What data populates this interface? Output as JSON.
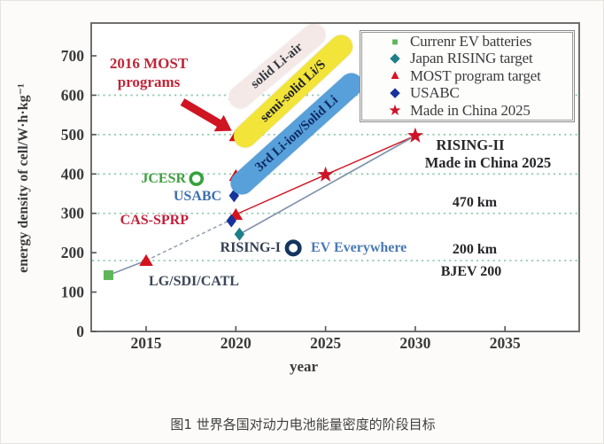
{
  "figure": {
    "caption": "图1 世界各国对动力电池能量密度的阶段目标"
  },
  "colors": {
    "accent_red": "#cf1422",
    "grid_green": "#93cbb0",
    "axis_gray": "#6f6f6f",
    "text_dark": "#3a3a3a"
  },
  "legend": {
    "items": [
      {
        "label": "Currenr EV batteries",
        "marker": "square",
        "color": "#5db75a"
      },
      {
        "label": "Japan RISING target",
        "marker": "diamond",
        "color": "#1d7f87"
      },
      {
        "label": "MOST program target",
        "marker": "triangle",
        "color": "#dd1020"
      },
      {
        "label": "USABC",
        "marker": "diamond",
        "color": "#16339b"
      },
      {
        "label": "Made in China 2025",
        "marker": "star",
        "color": "#cc1327"
      }
    ]
  },
  "chart_data": {
    "type": "scatter",
    "title": "",
    "xlabel": "year",
    "ylabel": "energy density of cell/W·h·kg⁻¹",
    "xlim": [
      2012,
      2039
    ],
    "ylim": [
      0,
      780
    ],
    "x_ticks": [
      2015,
      2020,
      2025,
      2030,
      2035
    ],
    "y_ticks": [
      0,
      100,
      200,
      300,
      400,
      500,
      600,
      700
    ],
    "gridlines_y": [
      180,
      300,
      400,
      500,
      600
    ],
    "gridline_color": "#93cbb0",
    "grid_style": "dashed",
    "legend_position": "top-right",
    "series": [
      {
        "name": "Currenr EV batteries",
        "marker": "square",
        "color": "#5db75a",
        "points": [
          [
            2012.9,
            143
          ]
        ]
      },
      {
        "name": "MOST program target",
        "marker": "triangle",
        "color": "#d6121f",
        "points": [
          [
            2015,
            180
          ],
          [
            2020,
            297
          ],
          [
            2020,
            396
          ],
          [
            2020,
            497
          ],
          [
            2020,
            602
          ]
        ]
      },
      {
        "name": "USABC",
        "marker": "diamond",
        "color": "#16339b",
        "points": [
          [
            2019.9,
            345
          ],
          [
            2019.75,
            281
          ]
        ]
      },
      {
        "name": "Japan RISING target",
        "marker": "diamond",
        "color": "#1d7f87",
        "points": [
          [
            2020.2,
            247
          ]
        ]
      },
      {
        "name": "Made in China 2025",
        "marker": "star",
        "color": "#cc1327",
        "points": [
          [
            2025,
            398
          ],
          [
            2030,
            497
          ]
        ]
      },
      {
        "name": "JCESR",
        "marker": "ring",
        "color": "#35a13b",
        "r": 6.5,
        "stroke_width": 3.6,
        "points": [
          [
            2017.8,
            388
          ]
        ]
      },
      {
        "name": "EV Everywhere",
        "marker": "ring",
        "color": "#14355f",
        "r": 7.2,
        "stroke_width": 4.6,
        "points": [
          [
            2023.2,
            212
          ]
        ]
      }
    ],
    "lines": [
      {
        "name": "current-ev-trend",
        "color": "#8093ad",
        "dash": "none",
        "width": 1.7,
        "points": [
          [
            2012.9,
            143
          ],
          [
            2015,
            180
          ]
        ]
      },
      {
        "name": "projection-dashed",
        "color": "#9099a8",
        "dash": "4 3",
        "width": 1.4,
        "points": [
          [
            2015,
            180
          ],
          [
            2019.75,
            284
          ]
        ]
      },
      {
        "name": "made-in-china-line",
        "color": "#cf1422",
        "dash": "none",
        "width": 1.4,
        "points": [
          [
            2020,
            297
          ],
          [
            2025,
            398
          ],
          [
            2030,
            497
          ]
        ]
      },
      {
        "name": "rising-line",
        "color": "#8093ad",
        "dash": "none",
        "width": 1.7,
        "points": [
          [
            2020.2,
            247
          ],
          [
            2030,
            497
          ]
        ]
      }
    ],
    "annotations": {
      "most_programs": {
        "text": "2016 MOST\nprograms",
        "color": "#bf2637"
      },
      "pill_li_air": {
        "text": "solid Li-air",
        "bg": "#f5e9e7",
        "color": "#33383f"
      },
      "pill_li_s": {
        "text": "semi-solid Li/S",
        "bg": "#f2e438",
        "color": "#20222e"
      },
      "pill_li_ion": {
        "text": "3rd Li-ion/Solid Li",
        "bg": "#57a0da",
        "color": "#0e2a63"
      },
      "jcesr": {
        "text": "JCESR",
        "color": "#3f9e41"
      },
      "usabc": {
        "text": "USABC",
        "color": "#3c6fb0"
      },
      "cas_sprp": {
        "text": "CAS-SPRP",
        "color": "#c3203a"
      },
      "rising1": {
        "text": "RISING-I",
        "color": "#333f54"
      },
      "ev_everywhere": {
        "text": "EV Everywhere",
        "color": "#4a7ab5"
      },
      "lg_sdi_catl": {
        "text": "LG/SDI/CATL",
        "color": "#3a4556"
      },
      "rising2": {
        "text": "RISING-II",
        "color": "#26262a"
      },
      "mic2025": {
        "text": "Made in China 2025",
        "color": "#26262a"
      },
      "km470": {
        "text": "470 km",
        "color": "#26262a"
      },
      "km200": {
        "text": "200 km",
        "color": "#26262a"
      },
      "bjev200": {
        "text": "BJEV 200",
        "color": "#26262a"
      }
    }
  }
}
